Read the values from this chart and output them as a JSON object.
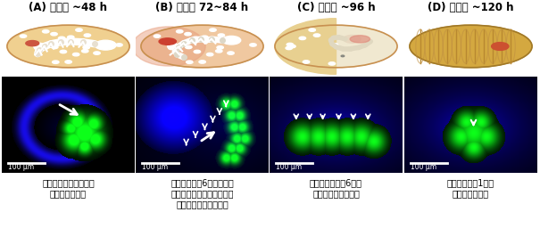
{
  "panels": [
    {
      "label": "(A) 産卵後 ~48 h",
      "caption_lines": [
        "共生細菌は胚体の腹面",
        "に集積（矢印）"
      ]
    },
    {
      "label": "(B) 産卵後 72~84 h",
      "caption_lines": [
        "胚体内に左右6対の菌細胞",
        "塊原基が出現し、共生細菌",
        "が感染、局在（矢頭）"
      ]
    },
    {
      "label": "(C) 産卵後 ~96 h",
      "caption_lines": [
        "胚反転の過程で6つの",
        "菌細胞塊原基が融合"
      ]
    },
    {
      "label": "(D) 産卵後 ~120 h",
      "caption_lines": [
        "最終的に左右1対の",
        "菌細胞塊となる"
      ]
    }
  ],
  "bg_color": "#ffffff",
  "egg_fill": "#f0d08a",
  "egg_border": "#c8964a",
  "label_fontsize": 8.5,
  "caption_fontsize": 7.0
}
